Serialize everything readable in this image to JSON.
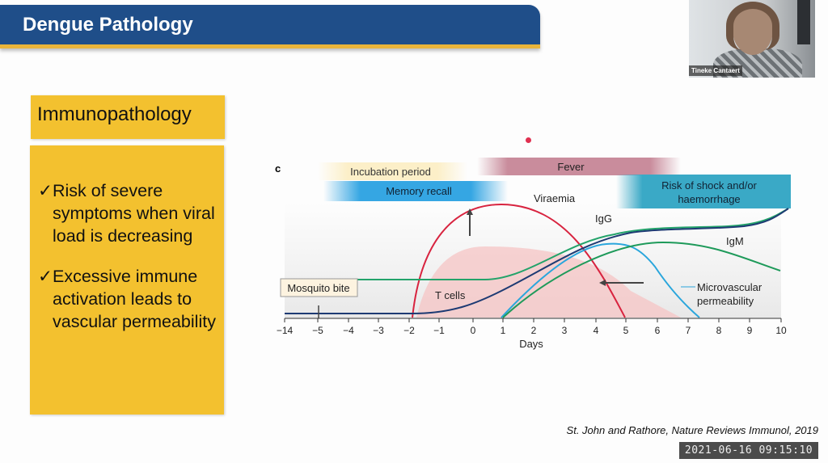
{
  "slide": {
    "title": "Dengue Pathology",
    "section_heading": "Immunopathology",
    "bullets": [
      {
        "check": "✓",
        "text": "Risk of severe symptoms when viral load is decreasing"
      },
      {
        "check": "✓",
        "text": "Excessive immune activation leads to vascular permeability"
      }
    ],
    "citation": "St. John and Rathore, Nature Reviews Immunol, 2019"
  },
  "figure": {
    "panel_letter": "c",
    "banners": {
      "incubation": "Incubation period",
      "fever": "Fever",
      "memory": "Memory recall",
      "risk_line1": "Risk of shock and/or",
      "risk_line2": "haemorrhage"
    },
    "labels": {
      "viraemia": "Viraemia",
      "igg": "IgG",
      "igm": "IgM",
      "tcells": "T cells",
      "micro1": "Microvascular",
      "micro2": "permeability",
      "mosquito": "Mosquito bite"
    },
    "x_axis_label": "Days",
    "x_ticks": [
      "−14",
      "−5",
      "−4",
      "−3",
      "−2",
      "−1",
      "0",
      "1",
      "2",
      "3",
      "4",
      "5",
      "6",
      "7",
      "8",
      "9",
      "10"
    ],
    "colors": {
      "viraemia": "#d8233f",
      "igg": "#23a36a",
      "tcells": "#1d3a73",
      "micro": "#2aa6dc",
      "igm": "#1e9a5a"
    }
  },
  "video": {
    "participant_name": "Tineke Cantaert",
    "timestamp": "2021-06-16 09:15:10"
  }
}
